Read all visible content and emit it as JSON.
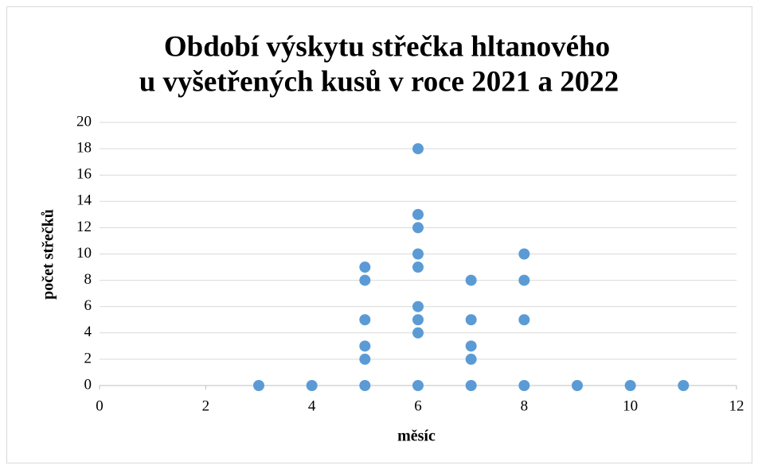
{
  "chart_data": {
    "type": "scatter",
    "title": [
      "Období výskytu střečka hltanového",
      "u vyšetřených kusů v roce 2021 a 2022"
    ],
    "xlabel": "měsíc",
    "ylabel": "počet střečků",
    "series": [
      {
        "color": "#5b9bd5",
        "x": [
          3,
          4,
          5,
          5,
          5,
          5,
          5,
          5,
          6,
          6,
          6,
          6,
          6,
          6,
          6,
          6,
          6,
          7,
          7,
          7,
          7,
          7,
          8,
          8,
          8,
          8,
          9,
          10,
          11
        ],
        "values": [
          0,
          0,
          0,
          2,
          3,
          5,
          8,
          9,
          0,
          4,
          5,
          6,
          9,
          10,
          12,
          13,
          18,
          0,
          2,
          3,
          5,
          8,
          0,
          5,
          8,
          10,
          0,
          0,
          0
        ]
      }
    ],
    "xlim": [
      0,
      12
    ],
    "xticks": [
      0,
      2,
      4,
      6,
      8,
      10,
      12
    ],
    "ylim": [
      0,
      20
    ],
    "yticks": [
      0,
      2,
      4,
      6,
      8,
      10,
      12,
      14,
      16,
      18,
      20
    ],
    "grid": true
  }
}
